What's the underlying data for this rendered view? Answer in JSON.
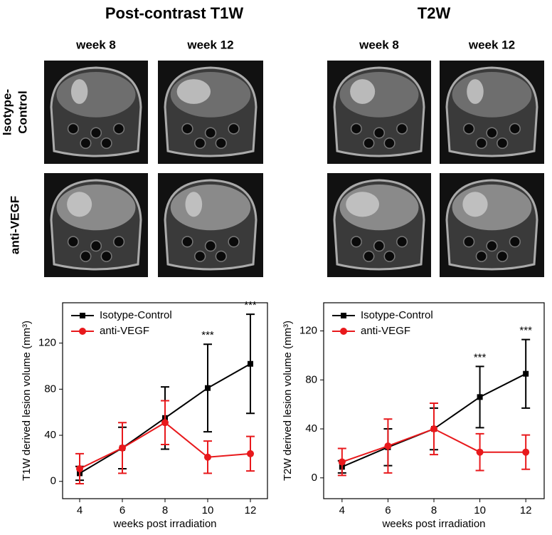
{
  "figure": {
    "sections": [
      {
        "title": "Post-contrast T1W",
        "columns": [
          "week 8",
          "week 12"
        ]
      },
      {
        "title": "T2W",
        "columns": [
          "week 8",
          "week 12"
        ]
      }
    ],
    "rows": [
      {
        "lines": [
          "Isotype-",
          "Control"
        ]
      },
      {
        "lines": [
          "anti-VEGF"
        ]
      }
    ]
  },
  "chart_data": [
    {
      "type": "line",
      "x": [
        4,
        6,
        8,
        10,
        12
      ],
      "xlim": [
        3.2,
        12.8
      ],
      "xticks": [
        4,
        6,
        8,
        10,
        12
      ],
      "ylim": [
        -15,
        155
      ],
      "yticks": [
        0,
        40,
        80,
        120
      ],
      "xlabel": "weeks post irradiation",
      "ylabel": "T1W derived lesion volume (mm³)",
      "legend": "upper left",
      "series": [
        {
          "name": "Isotype-Control",
          "color": "#000000",
          "marker": "square",
          "values": [
            7,
            29,
            55,
            81,
            102
          ],
          "errors": [
            6,
            18,
            27,
            38,
            43
          ]
        },
        {
          "name": "anti-VEGF",
          "color": "#e8191c",
          "marker": "circle",
          "values": [
            11,
            29,
            51,
            21,
            24
          ],
          "errors": [
            13,
            22,
            19,
            14,
            15
          ]
        }
      ],
      "annotations": [
        {
          "text": "***",
          "x": 10
        },
        {
          "text": "***",
          "x": 12
        }
      ]
    },
    {
      "type": "line",
      "x": [
        4,
        6,
        8,
        10,
        12
      ],
      "xlim": [
        3.2,
        12.8
      ],
      "xticks": [
        4,
        6,
        8,
        10,
        12
      ],
      "ylim": [
        -17,
        143
      ],
      "yticks": [
        0,
        40,
        80,
        120
      ],
      "xlabel": "weeks post irradiation",
      "ylabel": "T2W derived lesion volume (mm³)",
      "legend": "upper left",
      "series": [
        {
          "name": "Isotype-Control",
          "color": "#000000",
          "marker": "square",
          "values": [
            9,
            25,
            40,
            66,
            85
          ],
          "errors": [
            5,
            15,
            17,
            25,
            28
          ]
        },
        {
          "name": "anti-VEGF",
          "color": "#e8191c",
          "marker": "circle",
          "values": [
            13,
            26,
            40,
            21,
            21
          ],
          "errors": [
            11,
            22,
            21,
            15,
            14
          ]
        }
      ],
      "annotations": [
        {
          "text": "***",
          "x": 10
        },
        {
          "text": "***",
          "x": 12
        }
      ]
    }
  ]
}
